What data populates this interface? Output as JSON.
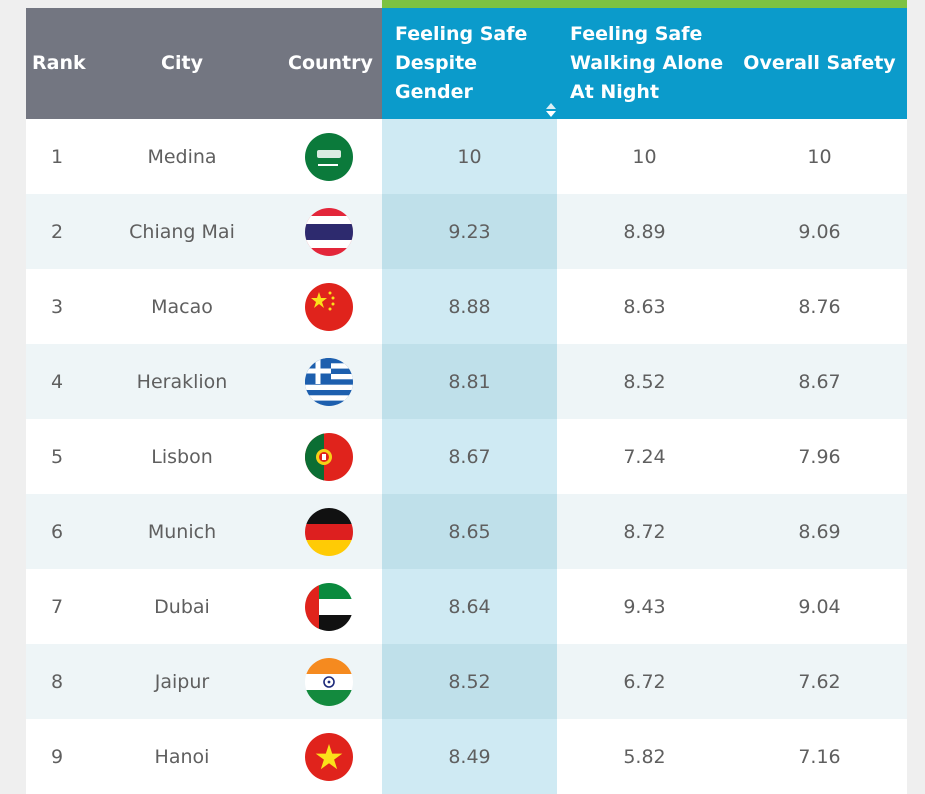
{
  "header": {
    "rank": "Rank",
    "city": "City",
    "country": "Country",
    "gender_line1": "Feeling Safe",
    "gender_line2": "Despite",
    "gender_line3": "Gender",
    "night_line1": "Feeling Safe",
    "night_line2": "Walking Alone",
    "night_line3": "At Night",
    "overall": "Overall Safety"
  },
  "colors": {
    "header_gray": "#737681",
    "header_blue": "#0b9bcb",
    "accent_green": "#7cc242",
    "sorted_column": "#cfeaf3"
  },
  "rows": [
    {
      "rank": "1",
      "city": "Medina",
      "country": "saudi-arabia",
      "gender": "10",
      "night": "10",
      "overall": "10"
    },
    {
      "rank": "2",
      "city": "Chiang Mai",
      "country": "thailand",
      "gender": "9.23",
      "night": "8.89",
      "overall": "9.06"
    },
    {
      "rank": "3",
      "city": "Macao",
      "country": "china",
      "gender": "8.88",
      "night": "8.63",
      "overall": "8.76"
    },
    {
      "rank": "4",
      "city": "Heraklion",
      "country": "greece",
      "gender": "8.81",
      "night": "8.52",
      "overall": "8.67"
    },
    {
      "rank": "5",
      "city": "Lisbon",
      "country": "portugal",
      "gender": "8.67",
      "night": "7.24",
      "overall": "7.96"
    },
    {
      "rank": "6",
      "city": "Munich",
      "country": "germany",
      "gender": "8.65",
      "night": "8.72",
      "overall": "8.69"
    },
    {
      "rank": "7",
      "city": "Dubai",
      "country": "uae",
      "gender": "8.64",
      "night": "9.43",
      "overall": "9.04"
    },
    {
      "rank": "8",
      "city": "Jaipur",
      "country": "india",
      "gender": "8.52",
      "night": "6.72",
      "overall": "7.62"
    },
    {
      "rank": "9",
      "city": "Hanoi",
      "country": "vietnam",
      "gender": "8.49",
      "night": "5.82",
      "overall": "7.16"
    }
  ]
}
